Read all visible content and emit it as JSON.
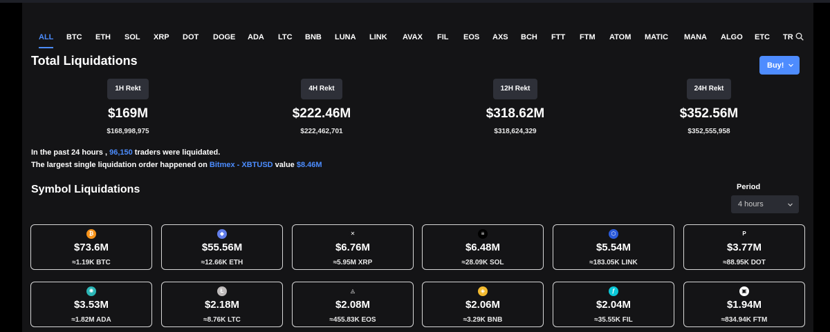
{
  "tabs": [
    "ALL",
    "BTC",
    "ETH",
    "SOL",
    "XRP",
    "DOT",
    "DOGE",
    "ADA",
    "LTC",
    "BNB",
    "LUNA",
    "LINK",
    "AVAX",
    "FIL",
    "EOS",
    "AXS",
    "BCH",
    "FTT",
    "FTM",
    "ATOM",
    "MATIC",
    "MANA",
    "ALGO",
    "ETC",
    "TR"
  ],
  "active_tab": "ALL",
  "total": {
    "title": "Total Liquidations",
    "buy_label": "Buy!",
    "periods": [
      {
        "label": "1H Rekt",
        "value": "$169M",
        "exact": "$168,998,975"
      },
      {
        "label": "4H Rekt",
        "value": "$222.46M",
        "exact": "$222,462,701"
      },
      {
        "label": "12H Rekt",
        "value": "$318.62M",
        "exact": "$318,624,329"
      },
      {
        "label": "24H Rekt",
        "value": "$352.56M",
        "exact": "$352,555,958"
      }
    ]
  },
  "summary": {
    "line1_pre": "In the past 24 hours , ",
    "traders": "96,150",
    "line1_post": " traders were liquidated.",
    "line2_pre": "The largest single liquidation order happened on ",
    "exchange_pair": "Bitmex - XBTUSD",
    "line2_mid": " value ",
    "order_value": "$8.46M"
  },
  "symbol": {
    "title": "Symbol Liquidations",
    "period_label": "Period",
    "period_value": "4 hours",
    "cards": [
      {
        "symbol": "BTC",
        "value": "$73.6M",
        "amount": "≈1.19K BTC",
        "icon": "bitcoin-icon",
        "color": "#f7931a",
        "glyph": "₿"
      },
      {
        "symbol": "ETH",
        "value": "$55.56M",
        "amount": "≈12.66K ETH",
        "icon": "ethereum-icon",
        "color": "#627eea",
        "glyph": "◆"
      },
      {
        "symbol": "XRP",
        "value": "$6.76M",
        "amount": "≈5.95M XRP",
        "icon": "xrp-icon",
        "color": "#141416",
        "glyph": "✕"
      },
      {
        "symbol": "SOL",
        "value": "$6.48M",
        "amount": "≈28.09K SOL",
        "icon": "solana-icon",
        "color": "#000000",
        "glyph": "≡"
      },
      {
        "symbol": "LINK",
        "value": "$5.54M",
        "amount": "≈183.05K LINK",
        "icon": "chainlink-icon",
        "color": "#2a5ada",
        "glyph": "⬡"
      },
      {
        "symbol": "DOT",
        "value": "$3.77M",
        "amount": "≈88.95K DOT",
        "icon": "polkadot-icon",
        "color": "#141416",
        "glyph": "P"
      },
      {
        "symbol": "ADA",
        "value": "$3.53M",
        "amount": "≈1.82M ADA",
        "icon": "cardano-icon",
        "color": "#2bb5b5",
        "glyph": "✺"
      },
      {
        "symbol": "LTC",
        "value": "$2.18M",
        "amount": "≈8.76K LTC",
        "icon": "litecoin-icon",
        "color": "#bfbbbb",
        "glyph": "Ł"
      },
      {
        "symbol": "EOS",
        "value": "$2.08M",
        "amount": "≈455.83K EOS",
        "icon": "eos-icon",
        "color": "#141416",
        "glyph": "◬"
      },
      {
        "symbol": "BNB",
        "value": "$2.06M",
        "amount": "≈3.29K BNB",
        "icon": "binance-icon",
        "color": "#f3ba2f",
        "glyph": "◈"
      },
      {
        "symbol": "FIL",
        "value": "$2.04M",
        "amount": "≈35.55K FIL",
        "icon": "filecoin-icon",
        "color": "#0bc8d8",
        "glyph": "ƒ"
      },
      {
        "symbol": "FTM",
        "value": "$1.94M",
        "amount": "≈834.94K FTM",
        "icon": "fantom-icon",
        "color": "#ffffff",
        "glyph": "▣"
      }
    ]
  },
  "colors": {
    "accent": "#4c8dff",
    "panel": "#141416",
    "badge": "#2e3038",
    "buy": "#4e8cff"
  }
}
